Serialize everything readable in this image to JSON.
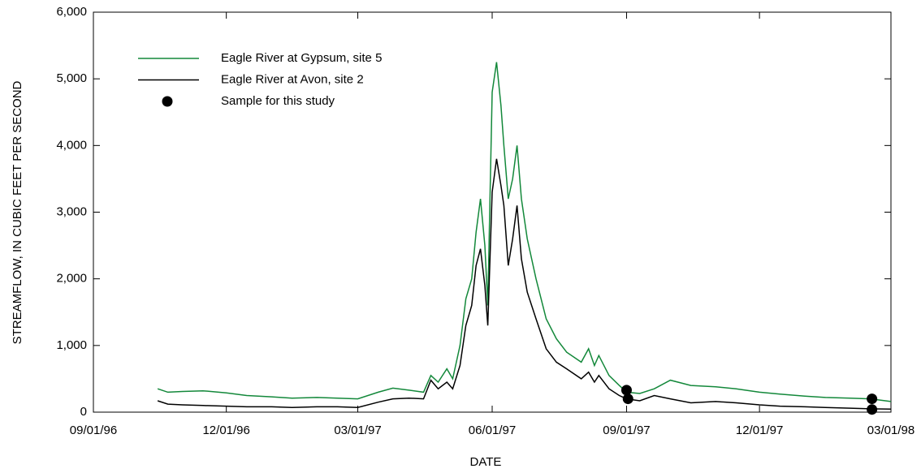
{
  "chart_data": {
    "type": "line",
    "xlabel": "DATE",
    "ylabel": "STREAMFLOW, IN CUBIC FEET PER SECOND",
    "xlim": [
      "1996-09-01",
      "1998-03-01"
    ],
    "xticks": [
      {
        "value": "1996-09-01",
        "label": "09/01/96"
      },
      {
        "value": "1996-12-01",
        "label": "12/01/96"
      },
      {
        "value": "1997-03-01",
        "label": "03/01/97"
      },
      {
        "value": "1997-06-01",
        "label": "06/01/97"
      },
      {
        "value": "1997-09-01",
        "label": "09/01/97"
      },
      {
        "value": "1997-12-01",
        "label": "12/01/97"
      },
      {
        "value": "1998-03-01",
        "label": "03/01/98"
      }
    ],
    "ylim": [
      0,
      6000
    ],
    "yticks": [
      0,
      {
        "value": 1000,
        "label": "1,000"
      },
      {
        "value": 2000,
        "label": "2,000"
      },
      {
        "value": 3000,
        "label": "3,000"
      },
      {
        "value": 4000,
        "label": "4,000"
      },
      {
        "value": 5000,
        "label": "5,000"
      },
      {
        "value": 6000,
        "label": "6,000"
      }
    ],
    "legend": "upper-left",
    "series": [
      {
        "name": "Eagle River at Gypsum, site 5",
        "color": "#13883a",
        "style": "line",
        "x": [
          "1996-10-15",
          "1996-10-22",
          "1996-11-01",
          "1996-11-15",
          "1996-12-01",
          "1996-12-15",
          "1997-01-01",
          "1997-01-15",
          "1997-02-01",
          "1997-02-15",
          "1997-03-01",
          "1997-03-15",
          "1997-03-25",
          "1997-04-05",
          "1997-04-15",
          "1997-04-20",
          "1997-04-25",
          "1997-05-01",
          "1997-05-05",
          "1997-05-10",
          "1997-05-14",
          "1997-05-18",
          "1997-05-21",
          "1997-05-24",
          "1997-05-27",
          "1997-05-29",
          "1997-06-01",
          "1997-06-04",
          "1997-06-07",
          "1997-06-09",
          "1997-06-12",
          "1997-06-15",
          "1997-06-18",
          "1997-06-21",
          "1997-06-25",
          "1997-07-01",
          "1997-07-08",
          "1997-07-15",
          "1997-07-22",
          "1997-08-01",
          "1997-08-06",
          "1997-08-10",
          "1997-08-13",
          "1997-08-20",
          "1997-08-27",
          "1997-09-01",
          "1997-09-10",
          "1997-09-20",
          "1997-10-01",
          "1997-10-15",
          "1997-11-01",
          "1997-11-15",
          "1997-12-01",
          "1997-12-15",
          "1998-01-01",
          "1998-01-15",
          "1998-02-01",
          "1998-02-15",
          "1998-03-01"
        ],
        "values": [
          350,
          300,
          310,
          320,
          290,
          250,
          230,
          210,
          220,
          210,
          200,
          300,
          360,
          330,
          300,
          550,
          450,
          650,
          500,
          1000,
          1700,
          2000,
          2700,
          3200,
          2500,
          1600,
          4800,
          5250,
          4600,
          4000,
          3200,
          3500,
          4000,
          3200,
          2600,
          2000,
          1400,
          1100,
          900,
          750,
          950,
          700,
          850,
          550,
          400,
          300,
          280,
          350,
          480,
          400,
          380,
          350,
          300,
          270,
          240,
          220,
          210,
          200,
          160
        ]
      },
      {
        "name": "Eagle River at Avon, site 2",
        "color": "#000000",
        "style": "line",
        "x": [
          "1996-10-15",
          "1996-10-22",
          "1996-11-01",
          "1996-11-15",
          "1996-12-01",
          "1996-12-15",
          "1997-01-01",
          "1997-01-15",
          "1997-02-01",
          "1997-02-15",
          "1997-03-01",
          "1997-03-15",
          "1997-03-25",
          "1997-04-05",
          "1997-04-15",
          "1997-04-20",
          "1997-04-25",
          "1997-05-01",
          "1997-05-05",
          "1997-05-10",
          "1997-05-14",
          "1997-05-18",
          "1997-05-21",
          "1997-05-24",
          "1997-05-27",
          "1997-05-29",
          "1997-06-01",
          "1997-06-04",
          "1997-06-07",
          "1997-06-09",
          "1997-06-12",
          "1997-06-15",
          "1997-06-18",
          "1997-06-21",
          "1997-06-25",
          "1997-07-01",
          "1997-07-08",
          "1997-07-15",
          "1997-07-22",
          "1997-08-01",
          "1997-08-06",
          "1997-08-10",
          "1997-08-13",
          "1997-08-20",
          "1997-08-27",
          "1997-09-01",
          "1997-09-10",
          "1997-09-20",
          "1997-10-01",
          "1997-10-15",
          "1997-11-01",
          "1997-11-15",
          "1997-12-01",
          "1997-12-15",
          "1998-01-01",
          "1998-01-15",
          "1998-02-01",
          "1998-02-15",
          "1998-03-01"
        ],
        "values": [
          170,
          120,
          110,
          100,
          90,
          80,
          80,
          70,
          80,
          80,
          70,
          150,
          200,
          210,
          200,
          480,
          350,
          450,
          350,
          700,
          1300,
          1600,
          2200,
          2450,
          1900,
          1300,
          3300,
          3800,
          3400,
          3100,
          2200,
          2600,
          3100,
          2300,
          1800,
          1400,
          950,
          750,
          650,
          500,
          600,
          450,
          550,
          350,
          250,
          200,
          170,
          250,
          200,
          140,
          160,
          140,
          110,
          90,
          80,
          70,
          60,
          50,
          45
        ]
      },
      {
        "name": "Sample for this study",
        "color": "#000000",
        "style": "markers",
        "x": [
          "1997-09-01",
          "1997-09-02",
          "1998-02-16",
          "1998-02-16"
        ],
        "values": [
          330,
          200,
          200,
          40
        ]
      }
    ]
  }
}
